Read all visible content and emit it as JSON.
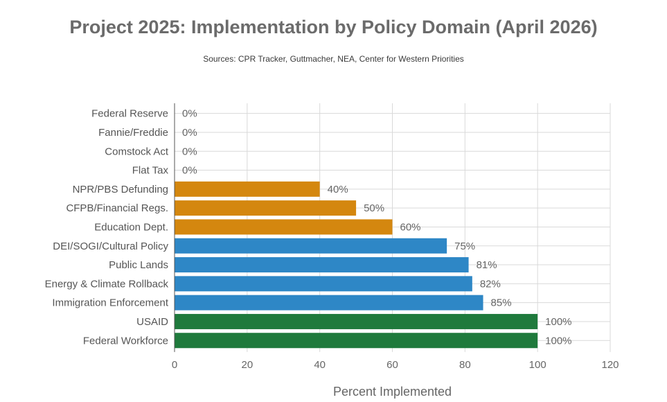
{
  "header": {
    "title": "Project 2025: Implementation by Policy Domain (April 2026)",
    "subtitle": "Sources: CPR Tracker, Guttmacher, NEA, Center for Western Priorities"
  },
  "chart_data": {
    "type": "bar",
    "orientation": "horizontal",
    "title": "Project 2025: Implementation by Policy Domain (April 2026)",
    "subtitle": "Sources: CPR Tracker, Guttmacher, NEA, Center for Western Priorities",
    "xlabel": "Percent Implemented",
    "ylabel": "",
    "xlim": [
      0,
      120
    ],
    "xticks": [
      0,
      20,
      40,
      60,
      80,
      100,
      120
    ],
    "grid": true,
    "categories": [
      "Federal Reserve",
      "Fannie/Freddie",
      "Comstock Act",
      "Flat Tax",
      "NPR/PBS Defunding",
      "CFPB/Financial Regs.",
      "Education Dept.",
      "DEI/SOGI/Cultural Policy",
      "Public Lands",
      "Energy & Climate Rollback",
      "Immigration Enforcement",
      "USAID",
      "Federal Workforce"
    ],
    "values": [
      0,
      0,
      0,
      0,
      40,
      50,
      60,
      75,
      81,
      82,
      85,
      100,
      100
    ],
    "value_labels": [
      "0%",
      "0%",
      "0%",
      "0%",
      "40%",
      "50%",
      "60%",
      "75%",
      "81%",
      "82%",
      "85%",
      "100%",
      "100%"
    ],
    "bar_colors": [
      "#d4870f",
      "#d4870f",
      "#d4870f",
      "#d4870f",
      "#d4870f",
      "#d4870f",
      "#d4870f",
      "#2e87c6",
      "#2e87c6",
      "#2e87c6",
      "#2e87c6",
      "#1f7a3c",
      "#1f7a3c"
    ]
  }
}
